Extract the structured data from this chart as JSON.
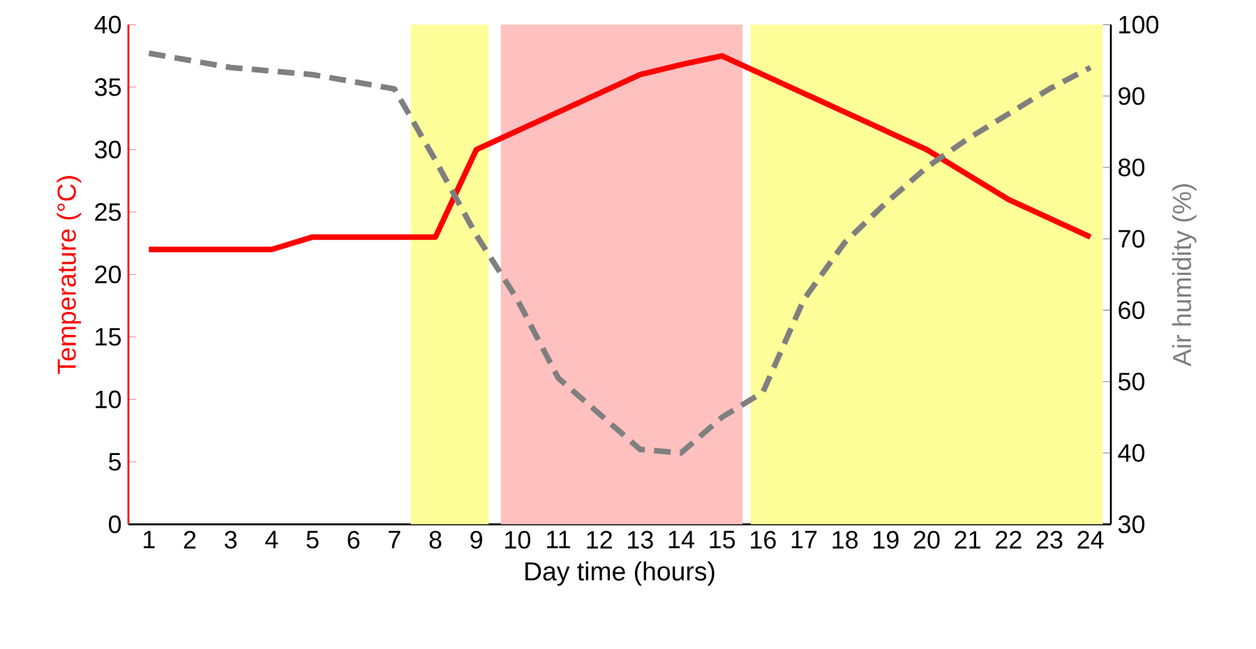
{
  "chart_data": {
    "type": "line",
    "xlabel": "Day time (hours)",
    "ylabel": "Temperature (°C)",
    "y2label": "Air humidity (%)",
    "x": [
      1,
      2,
      3,
      4,
      5,
      6,
      7,
      8,
      9,
      10,
      11,
      12,
      13,
      14,
      15,
      16,
      17,
      18,
      19,
      20,
      21,
      22,
      23,
      24
    ],
    "xlim": [
      0.5,
      24.5
    ],
    "xticks": [
      1,
      2,
      3,
      4,
      5,
      6,
      7,
      8,
      9,
      10,
      11,
      12,
      13,
      14,
      15,
      16,
      17,
      18,
      19,
      20,
      21,
      22,
      23,
      24
    ],
    "ylim": [
      0,
      40
    ],
    "yticks": [
      0,
      5,
      10,
      15,
      20,
      25,
      30,
      35,
      40
    ],
    "y2lim": [
      30,
      100
    ],
    "y2ticks": [
      30,
      40,
      50,
      60,
      70,
      80,
      90,
      100
    ],
    "series": [
      {
        "color": "#ff0000",
        "line_style": "solid",
        "values": [
          22,
          22,
          22,
          22,
          23,
          23,
          23,
          23,
          30,
          31.5,
          33,
          34.5,
          36,
          36.8,
          37.5,
          36,
          34.5,
          33,
          31.5,
          30,
          28,
          26,
          24.5,
          23
        ]
      },
      {
        "color": "#7f7f7f",
        "line_style": "dashed",
        "axis": "y2",
        "values": [
          96,
          95,
          94,
          93.5,
          93,
          92,
          91,
          81,
          70.5,
          61.5,
          50.5,
          45.5,
          40.5,
          40,
          45,
          48.5,
          61.5,
          69.5,
          75,
          80,
          84,
          87.5,
          91,
          94
        ]
      }
    ],
    "bands": [
      {
        "axis": "x",
        "from": 7.4,
        "to": 9.3,
        "color": "#ffff99"
      },
      {
        "axis": "x",
        "from": 9.6,
        "to": 15.5,
        "color": "#ffc0c0"
      },
      {
        "axis": "x",
        "from": 15.7,
        "to": 24.3,
        "color": "#ffff99"
      }
    ]
  }
}
